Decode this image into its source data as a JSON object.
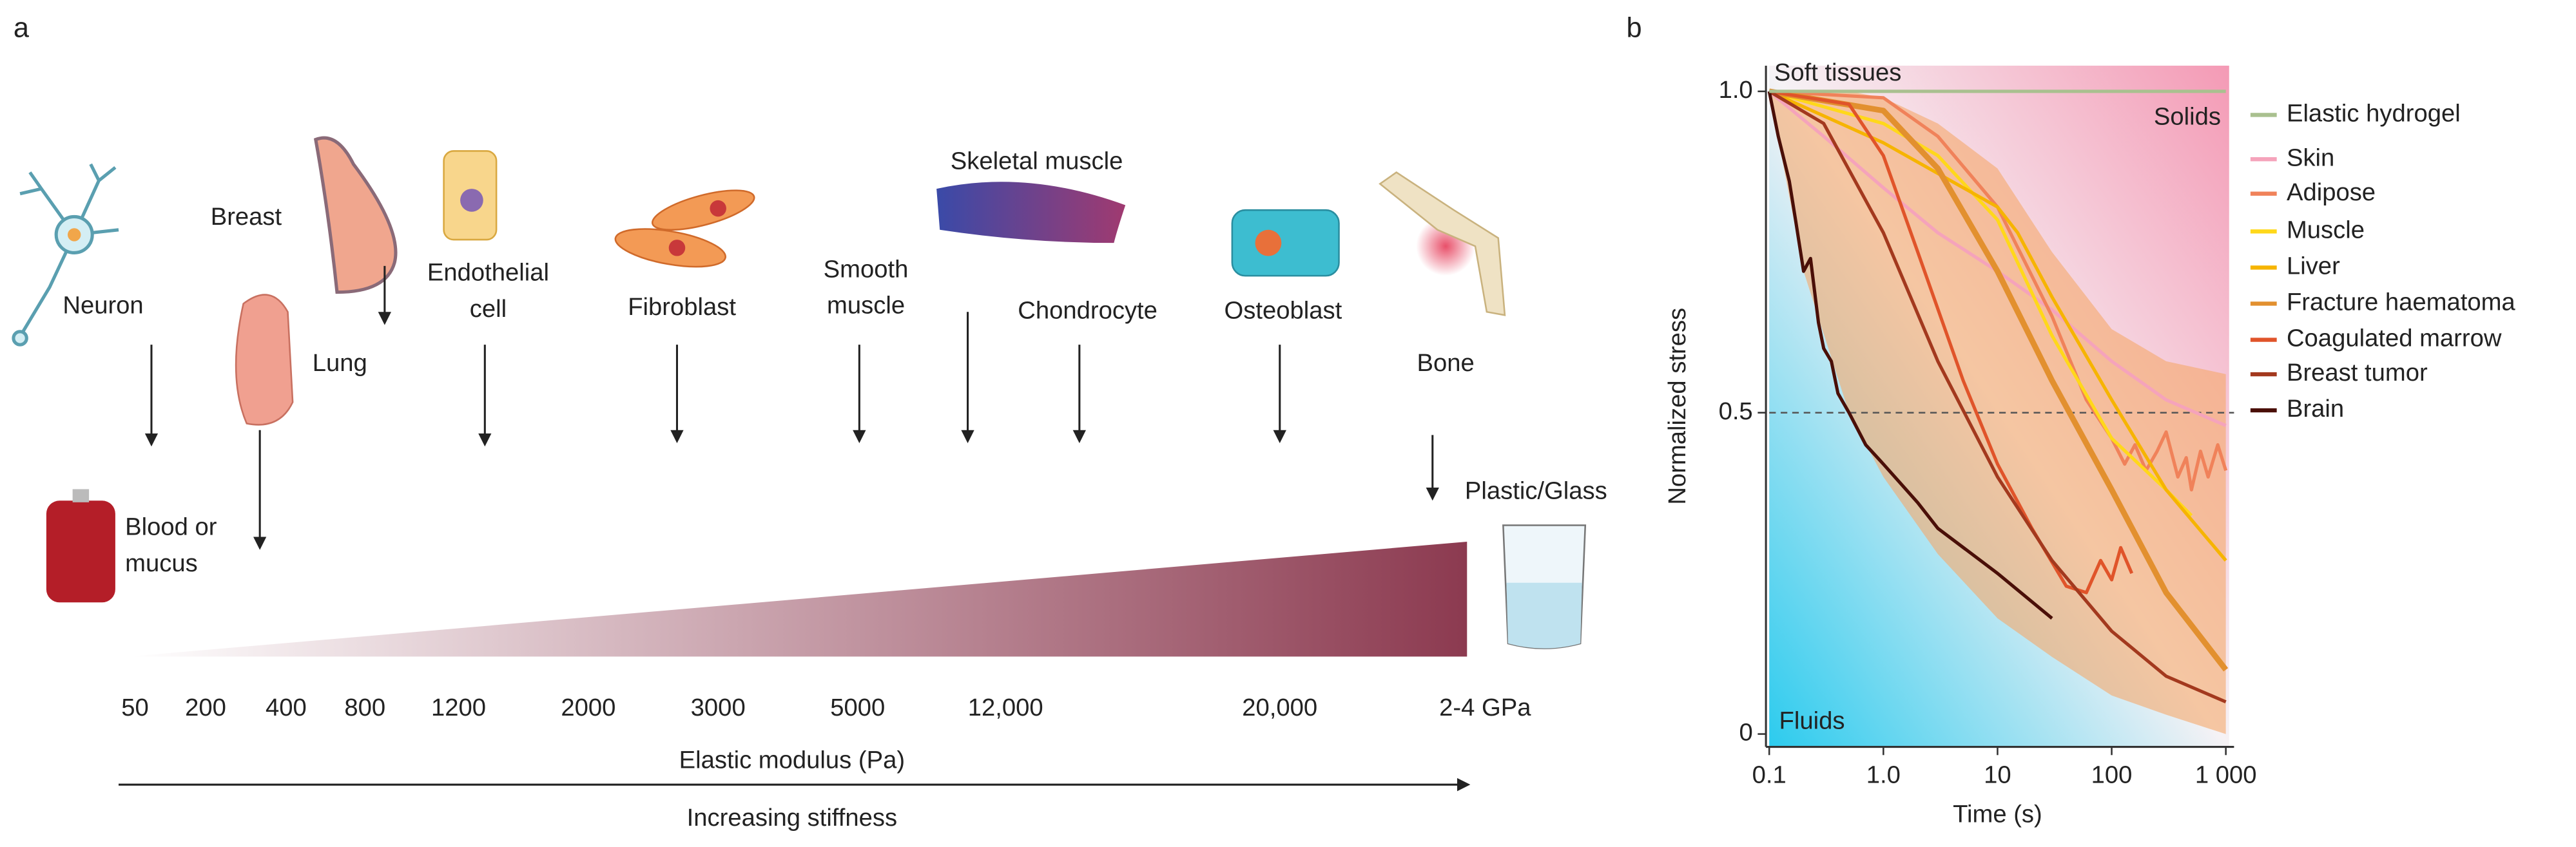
{
  "panel_a": {
    "label": "a",
    "cells": [
      {
        "lines": [
          "Neuron"
        ]
      },
      {
        "lines": [
          "Breast"
        ]
      },
      {
        "lines": [
          "Lung"
        ]
      },
      {
        "lines": [
          "Endothelial",
          "cell"
        ]
      },
      {
        "lines": [
          "Fibroblast"
        ]
      },
      {
        "lines": [
          "Smooth",
          "muscle"
        ]
      },
      {
        "lines": [
          "Skeletal muscle"
        ]
      },
      {
        "lines": [
          "Chondrocyte"
        ]
      },
      {
        "lines": [
          "Osteoblast"
        ]
      },
      {
        "lines": [
          "Bone"
        ]
      },
      {
        "lines": [
          "Blood or",
          "mucus"
        ]
      },
      {
        "lines": [
          "Plastic/Glass"
        ]
      }
    ],
    "stiffness_labels": [
      "50",
      "200",
      "400",
      "800",
      "1200",
      "2000",
      "3000",
      "5000",
      "12,000",
      "20,000",
      "2-4 GPa"
    ],
    "axis_label": "Elastic modulus (Pa)",
    "arrow_label": "Increasing stiffness"
  },
  "chart_data": {
    "type": "line",
    "panel_label": "b",
    "x_label": "Time (s)",
    "y_label": "Normalized stress",
    "annotations": [
      "Soft tissues",
      "Solids",
      "Fluids"
    ],
    "log_x": true,
    "xlim": [
      0.1,
      1000
    ],
    "ylim": [
      -0.02,
      1.04
    ],
    "xticks": [
      0.1,
      {
        "value": 1,
        "label": "1.0"
      },
      10,
      100,
      {
        "value": 1000,
        "label": "1 000"
      }
    ],
    "yticks": [
      0,
      0.5,
      {
        "value": 1,
        "label": "1.0"
      }
    ],
    "hline": 0.5,
    "envelope": {
      "color": "#f5a96a",
      "x": [
        0.1,
        0.2,
        0.5,
        1,
        3,
        10,
        30,
        100,
        300,
        1000
      ],
      "upper": [
        1,
        1,
        1,
        0.99,
        0.95,
        0.88,
        0.75,
        0.63,
        0.58,
        0.56
      ],
      "lower": [
        1,
        0.72,
        0.5,
        0.4,
        0.28,
        0.18,
        0.12,
        0.06,
        0.03,
        0
      ]
    },
    "series": [
      {
        "name": "Elastic hydrogel",
        "color": "#a9c08f",
        "x": [
          0.1,
          1000
        ],
        "values": [
          1,
          1
        ]
      },
      {
        "name": "Skin",
        "color": "#f5a3bb",
        "x": [
          0.1,
          0.3,
          1,
          3,
          10,
          30,
          100,
          300,
          1000
        ],
        "values": [
          1,
          0.93,
          0.85,
          0.78,
          0.72,
          0.66,
          0.58,
          0.52,
          0.48
        ]
      },
      {
        "name": "Adipose",
        "color": "#f0825a",
        "x": [
          0.1,
          1,
          3,
          10,
          30,
          60,
          100,
          130,
          160,
          200,
          250,
          300,
          380,
          450,
          500,
          600,
          700,
          850,
          1000
        ],
        "values": [
          1,
          0.99,
          0.93,
          0.82,
          0.65,
          0.52,
          0.46,
          0.42,
          0.45,
          0.41,
          0.44,
          0.47,
          0.4,
          0.43,
          0.38,
          0.44,
          0.4,
          0.45,
          0.41
        ]
      },
      {
        "name": "Muscle",
        "color": "#ffd81a",
        "x": [
          0.1,
          1,
          3,
          10,
          30,
          100,
          300,
          500
        ],
        "values": [
          1,
          0.95,
          0.9,
          0.8,
          0.62,
          0.46,
          0.38,
          0.34
        ]
      },
      {
        "name": "Liver",
        "color": "#f6b400",
        "x": [
          0.1,
          1,
          10,
          15,
          30,
          100,
          300,
          1000
        ],
        "values": [
          1,
          0.92,
          0.82,
          0.78,
          0.68,
          0.52,
          0.38,
          0.27
        ]
      },
      {
        "name": "Fracture haematoma",
        "color": "#e2902f",
        "x": [
          0.1,
          1,
          3,
          10,
          30,
          100,
          300,
          1000
        ],
        "values": [
          1,
          0.97,
          0.88,
          0.72,
          0.55,
          0.38,
          0.22,
          0.1
        ]
      },
      {
        "name": "Coagulated marrow",
        "color": "#e0542a",
        "x": [
          0.1,
          0.5,
          1,
          2,
          5,
          10,
          20,
          40,
          60,
          80,
          100,
          120,
          150
        ],
        "values": [
          1,
          0.98,
          0.9,
          0.75,
          0.55,
          0.42,
          0.32,
          0.23,
          0.22,
          0.27,
          0.24,
          0.29,
          0.25
        ]
      },
      {
        "name": "Breast tumor",
        "color": "#a3391e",
        "x": [
          0.1,
          0.3,
          1,
          3,
          10,
          30,
          100,
          300,
          1000
        ],
        "values": [
          1,
          0.95,
          0.78,
          0.58,
          0.4,
          0.27,
          0.16,
          0.09,
          0.05
        ]
      },
      {
        "name": "Brain",
        "color": "#4a0f08",
        "x": [
          0.1,
          0.12,
          0.15,
          0.17,
          0.2,
          0.23,
          0.27,
          0.3,
          0.35,
          0.4,
          0.5,
          0.7,
          1,
          2,
          3,
          10,
          30
        ],
        "values": [
          1,
          0.93,
          0.86,
          0.8,
          0.72,
          0.74,
          0.64,
          0.6,
          0.58,
          0.53,
          0.5,
          0.45,
          0.42,
          0.36,
          0.32,
          0.25,
          0.18
        ]
      }
    ]
  }
}
